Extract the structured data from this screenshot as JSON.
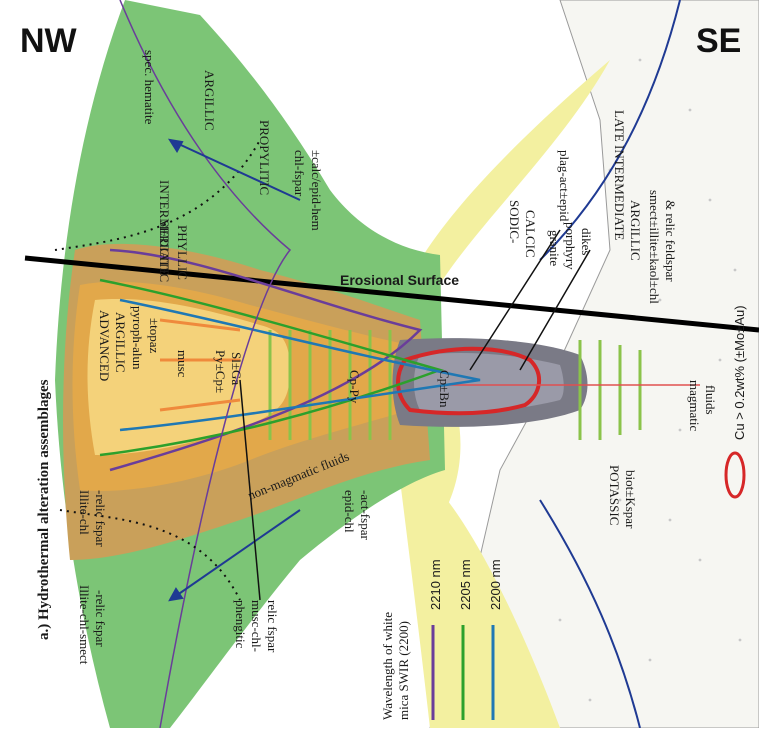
{
  "corners": {
    "left": "NW",
    "right": "SE"
  },
  "side_title": "a.) Hydrothermal alteration assemblages",
  "erosional_surface": "Erosional Surface",
  "zones": {
    "intermediate_argillic_top": "INTERMEDIATE",
    "spec_hematite": "spec. hematite",
    "argillic_top": "ARGILLIC",
    "propylitic": "PROPYLITIC",
    "chl_fspar": "chl-fspar",
    "calc_epid_hem": "±calc/epid-hem",
    "sericitic": "SERICITIC",
    "phyllic": "PHYLLIC",
    "advanced": "ADVANCED",
    "argillic_adv": "ARGILLIC",
    "pyroph_alun": "pyroph-alun",
    "topaz": "±topaz",
    "musc": "musc",
    "py_cp": "Py±Cp±",
    "sl_ga": "Sl±Ga",
    "cp_py": "Cp-Py",
    "cp_bn": "Cp±Bn",
    "illite_chl": "Illite-chl",
    "relic_fspar": "-relic fspar",
    "illite_chl_smect": "Illite-chl-smect",
    "relic_fspar2": "-relic fspar",
    "phengitic": "phengitic",
    "musc_chl": "musc-chl-",
    "relic_fspar3": "relic fspar",
    "non_magmatic": "non-magmatic fluids",
    "epid_chl": "epid-chl",
    "act_fspar": "-act-fspar",
    "sodic": "SODIC-",
    "calcic": "CALCIC",
    "plag_act_epid": "plag-act±epid",
    "granite": "granite",
    "porphyry": "porphyry",
    "dikes": "dikes",
    "late": "LATE INTERMEDIATE",
    "argillic_late": "ARGILLIC",
    "smect": "smect±illite±kaol±chl",
    "relic_feldspar": "& relic feldspar",
    "potassic": "POTASSIC",
    "biot_kspar": "biot±Kspar",
    "magmatic": "magmatic",
    "fluids": "fluids"
  },
  "legend": {
    "title1": "Wavelength of white",
    "title2": "mica SWIR (2200)",
    "items": [
      {
        "label": "2210 nm",
        "color": "#6a3d9a"
      },
      {
        "label": "2205 nm",
        "color": "#2ca02c"
      },
      {
        "label": "2200 nm",
        "color": "#1f78b4"
      }
    ],
    "cu_label": "Cu > 0.2wt% (±Mo±Au)"
  },
  "colors": {
    "propylitic_green": "#7cc576",
    "sodic_yellow": "#f3f0a0",
    "sericitic_brown": "#c9a05a",
    "advanced_orange": "#e2a84a",
    "core_yellow": "#f4d27a",
    "potassic_grey": "#7a7a86",
    "cu_red": "#d62728"
  }
}
